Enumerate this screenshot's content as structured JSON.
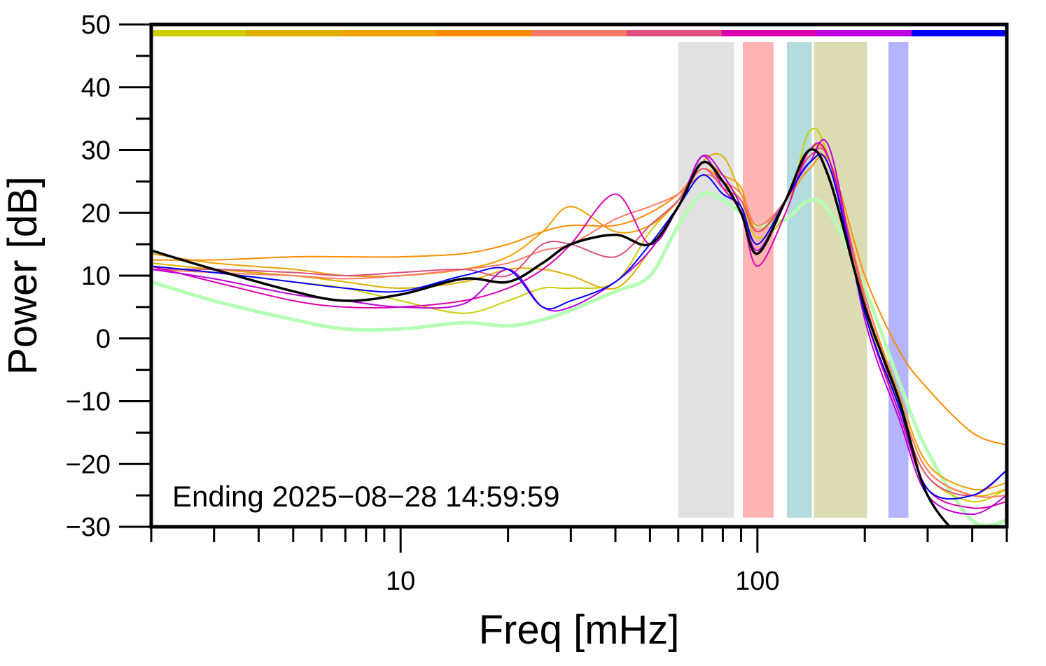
{
  "chart_data": {
    "type": "line",
    "xlabel": "Freq [mHz]",
    "ylabel": "Power [dB]",
    "xscale": "log",
    "xlim": [
      2,
      500
    ],
    "ylim": [
      -30,
      50
    ],
    "x_ticks": [
      {
        "value": 10,
        "label": "10"
      },
      {
        "value": 100,
        "label": "100"
      }
    ],
    "y_ticks": [
      {
        "value": 50,
        "label": "50"
      },
      {
        "value": 40,
        "label": "40"
      },
      {
        "value": 30,
        "label": "30"
      },
      {
        "value": 20,
        "label": "20"
      },
      {
        "value": 10,
        "label": "10"
      },
      {
        "value": 0,
        "label": "0"
      },
      {
        "value": -10,
        "label": "−10"
      },
      {
        "value": -20,
        "label": "−20"
      },
      {
        "value": -30,
        "label": "−30"
      }
    ],
    "grid": false,
    "annotation": "Ending 2025−08−28 14:59:59",
    "color_bar": [
      "#cccc00",
      "#ddb000",
      "#f0a000",
      "#ff8c00",
      "#ff7a66",
      "#dd5080",
      "#dd00b0",
      "#bb00dd",
      "#0000ff"
    ],
    "bands": [
      {
        "from": 60,
        "to": 86,
        "color": "#e1e1e1"
      },
      {
        "from": 91,
        "to": 111,
        "color": "#ffb4b4"
      },
      {
        "from": 121,
        "to": 142,
        "color": "#b4dcdc"
      },
      {
        "from": 144,
        "to": 203,
        "color": "#dcdcb4"
      },
      {
        "from": 233,
        "to": 265,
        "color": "#b4b4ff"
      }
    ],
    "x": [
      2,
      3,
      5,
      7,
      10,
      15,
      20,
      25,
      30,
      40,
      50,
      60,
      70,
      80,
      90,
      100,
      120,
      140,
      160,
      200,
      250,
      300,
      400,
      500
    ],
    "series": [
      {
        "color": "#b4ffb4",
        "width": 5,
        "values": [
          9,
          6,
          3,
          1.5,
          1.5,
          2.5,
          2,
          3,
          4.5,
          7.5,
          10,
          18,
          23,
          22,
          20,
          18,
          19,
          22,
          20,
          8,
          -7,
          -18,
          -29,
          -29
        ]
      },
      {
        "color": "#cccc00",
        "width": 2,
        "values": [
          11,
          10.5,
          9,
          8,
          6,
          4,
          6,
          8,
          8,
          9,
          17,
          22,
          28,
          25,
          22,
          16,
          20,
          33,
          28,
          5,
          -12,
          -22,
          -26,
          -24
        ]
      },
      {
        "color": "#ddb000",
        "width": 2,
        "values": [
          12,
          11,
          10,
          9,
          8,
          9,
          11,
          11,
          10,
          8,
          14,
          21,
          28,
          29,
          23,
          18,
          22,
          30,
          28,
          6,
          -10,
          -21,
          -25,
          -24
        ]
      },
      {
        "color": "#f0a000",
        "width": 2,
        "values": [
          13.5,
          12,
          11,
          10,
          10,
          11,
          13,
          17,
          21,
          17,
          18,
          22,
          28,
          26,
          24,
          17,
          22,
          30,
          28,
          7,
          -9,
          -20,
          -24,
          -23
        ]
      },
      {
        "color": "#ff8c00",
        "width": 2,
        "values": [
          12.5,
          12.5,
          13,
          13,
          13,
          13.5,
          15,
          17,
          18,
          18,
          20,
          23,
          27,
          25,
          23,
          17,
          22,
          27,
          28,
          10,
          -2,
          -8,
          -15,
          -17
        ]
      },
      {
        "color": "#ff7a66",
        "width": 2,
        "values": [
          11,
          10.5,
          10,
          9.5,
          10,
          11,
          12,
          14,
          15,
          19,
          21,
          23,
          26,
          25,
          23,
          18,
          22,
          29,
          27,
          7,
          -10,
          -21,
          -25,
          -25
        ]
      },
      {
        "color": "#dd5080",
        "width": 2,
        "values": [
          11,
          11,
          10.5,
          10,
          10.5,
          11,
          10,
          15,
          15,
          13,
          18,
          22,
          27,
          24,
          22,
          17,
          22,
          29,
          28,
          6,
          -11,
          -22,
          -25,
          -21
        ]
      },
      {
        "color": "#dd00b0",
        "width": 2,
        "values": [
          11.5,
          9,
          6,
          5,
          5,
          6,
          8,
          11,
          15,
          23,
          15,
          21,
          29,
          24,
          20,
          11.5,
          20,
          30,
          28,
          4,
          -12,
          -24,
          -27,
          -26
        ]
      },
      {
        "color": "#bb00dd",
        "width": 2,
        "values": [
          11,
          9.5,
          7,
          6,
          5,
          5.5,
          11,
          5,
          5,
          9,
          14,
          21,
          29,
          26,
          21,
          14,
          22,
          28,
          30,
          3,
          -13,
          -25,
          -28,
          -25
        ]
      },
      {
        "color": "#0000ff",
        "width": 2,
        "values": [
          11.5,
          10.5,
          9,
          8,
          7.5,
          10,
          11,
          5,
          6,
          9,
          15,
          21,
          26,
          23,
          21,
          15,
          22,
          28,
          27,
          4,
          -11,
          -24,
          -25,
          -21
        ]
      },
      {
        "color": "#000000",
        "width": 3.5,
        "values": [
          14,
          11,
          7.5,
          6,
          7,
          9.5,
          9,
          12,
          15,
          16.5,
          15,
          21,
          28,
          25,
          20,
          13.5,
          22,
          30,
          25,
          5,
          -10,
          -25,
          -33,
          -33
        ]
      }
    ]
  }
}
